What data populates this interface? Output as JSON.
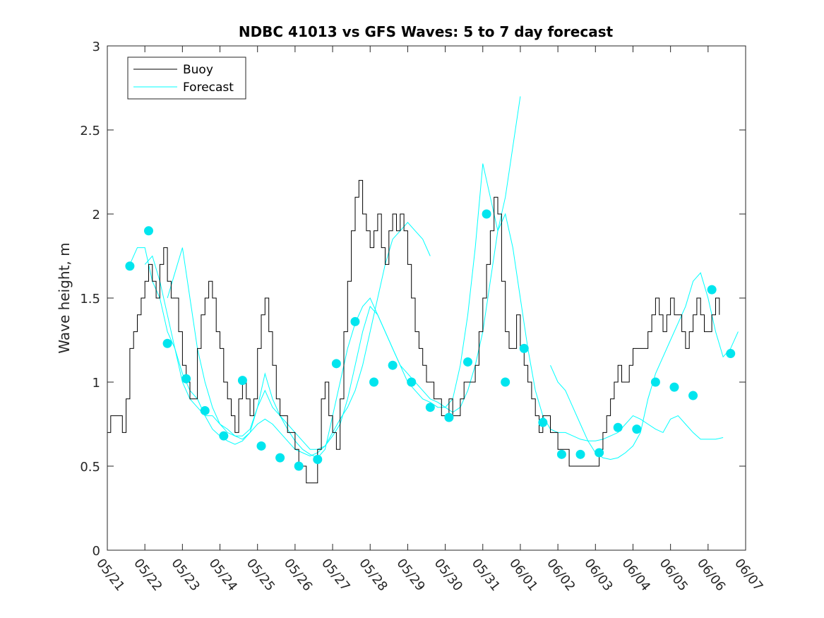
{
  "chart_data": {
    "type": "line",
    "title": "NDBC 41013 vs GFS Waves: 5 to 7 day forecast",
    "xlabel": "",
    "ylabel": "Wave height, m",
    "ylim": [
      0,
      3
    ],
    "yticks": [
      "0",
      "0.5",
      "1",
      "1.5",
      "2",
      "2.5",
      "3"
    ],
    "xlim": [
      "05/21",
      "06/07"
    ],
    "xticks": [
      "05/21",
      "05/22",
      "05/23",
      "05/24",
      "05/25",
      "05/26",
      "05/27",
      "05/28",
      "05/29",
      "05/30",
      "05/31",
      "06/01",
      "06/02",
      "06/03",
      "06/04",
      "06/05",
      "06/06",
      "06/07"
    ],
    "grid": false,
    "legend": {
      "placement": "top-left",
      "entries": [
        "Buoy",
        "Forecast"
      ]
    },
    "colors": {
      "buoy": "#000000",
      "forecast": "#00ffff",
      "markers": "#00e5ee",
      "axes": "#262626"
    },
    "series": [
      {
        "name": "Buoy",
        "x": [
          0,
          0.08,
          0.09,
          0.4,
          0.5,
          0.6,
          0.7,
          0.8,
          0.9,
          1.0,
          1.1,
          1.2,
          1.3,
          1.4,
          1.5,
          1.6,
          1.7,
          1.8,
          1.9,
          2.0,
          2.1,
          2.2,
          2.3,
          2.4,
          2.5,
          2.6,
          2.7,
          2.8,
          2.9,
          3.0,
          3.1,
          3.2,
          3.3,
          3.4,
          3.5,
          3.6,
          3.7,
          3.8,
          3.9,
          4.0,
          4.1,
          4.2,
          4.3,
          4.4,
          4.5,
          4.6,
          4.7,
          4.8,
          4.9,
          5.0,
          5.1,
          5.2,
          5.3,
          5.4,
          5.5,
          5.6,
          5.7,
          5.8,
          5.9,
          6.0,
          6.1,
          6.2,
          6.3,
          6.4,
          6.5,
          6.6,
          6.7,
          6.8,
          6.9,
          7.0,
          7.1,
          7.2,
          7.3,
          7.4,
          7.5,
          7.6,
          7.7,
          7.8,
          7.9,
          8.0,
          8.1,
          8.2,
          8.3,
          8.4,
          8.5,
          8.6,
          8.7,
          8.8,
          8.9,
          9.0,
          9.1,
          9.2,
          9.3,
          9.4,
          9.5,
          9.6,
          9.7,
          9.8,
          9.9,
          10.0,
          10.1,
          10.2,
          10.3,
          10.4,
          10.5,
          10.6,
          10.7,
          10.8,
          10.9,
          11.0,
          11.1,
          11.2,
          11.3,
          11.4,
          11.5,
          11.6,
          11.7,
          11.8,
          11.9,
          12.0,
          12.1,
          12.2,
          12.3,
          12.4,
          12.5,
          12.6,
          12.7,
          12.8,
          12.9,
          13.0,
          13.1,
          13.2,
          13.3,
          13.4,
          13.5,
          13.6,
          13.7,
          13.8,
          13.9,
          14.0,
          14.1,
          14.2,
          14.3,
          14.4,
          14.5,
          14.6,
          14.7,
          14.8,
          14.9,
          15.0,
          15.1,
          15.2,
          15.3,
          15.4,
          15.5,
          15.6,
          15.7,
          15.8,
          15.9,
          16.0,
          16.1,
          16.2,
          16.3
        ],
        "values": [
          0.7,
          0.7,
          0.8,
          0.7,
          0.9,
          1.2,
          1.3,
          1.4,
          1.5,
          1.6,
          1.7,
          1.6,
          1.5,
          1.7,
          1.8,
          1.6,
          1.5,
          1.5,
          1.3,
          1.1,
          1.0,
          0.9,
          0.9,
          1.2,
          1.4,
          1.5,
          1.6,
          1.5,
          1.3,
          1.2,
          1.0,
          0.9,
          0.8,
          0.7,
          0.9,
          1.0,
          0.9,
          0.8,
          0.9,
          1.2,
          1.4,
          1.5,
          1.3,
          1.1,
          0.9,
          0.8,
          0.8,
          0.7,
          0.7,
          0.6,
          0.5,
          0.5,
          0.4,
          0.4,
          0.4,
          0.6,
          0.9,
          1.0,
          0.8,
          0.7,
          0.6,
          0.9,
          1.3,
          1.6,
          1.9,
          2.1,
          2.2,
          2.0,
          1.9,
          1.8,
          1.9,
          2.0,
          1.8,
          1.7,
          1.9,
          2.0,
          1.9,
          2.0,
          1.9,
          1.7,
          1.5,
          1.3,
          1.2,
          1.1,
          1.0,
          1.0,
          0.9,
          0.9,
          0.8,
          0.8,
          0.9,
          0.8,
          0.8,
          0.9,
          1.0,
          1.0,
          1.0,
          1.1,
          1.3,
          1.5,
          1.7,
          1.9,
          2.1,
          2.0,
          1.6,
          1.3,
          1.2,
          1.2,
          1.4,
          1.2,
          1.1,
          1.0,
          0.9,
          0.8,
          0.7,
          0.8,
          0.8,
          0.7,
          0.7,
          0.6,
          0.6,
          0.6,
          0.5,
          0.5,
          0.5,
          0.5,
          0.5,
          0.5,
          0.5,
          0.5,
          0.6,
          0.7,
          0.8,
          0.9,
          1.0,
          1.1,
          1.0,
          1.0,
          1.1,
          1.2,
          1.2,
          1.2,
          1.2,
          1.3,
          1.4,
          1.5,
          1.4,
          1.3,
          1.4,
          1.5,
          1.4,
          1.4,
          1.3,
          1.2,
          1.3,
          1.4,
          1.5,
          1.4,
          1.3,
          1.3,
          1.4,
          1.5,
          1.4
        ]
      },
      {
        "name": "Forecast",
        "x": [
          0.6,
          0.8,
          1.0,
          1.2,
          1.4,
          1.6,
          1.8,
          2.0,
          2.2,
          2.4,
          2.6,
          2.8,
          3.0,
          3.2,
          3.4,
          3.6,
          3.8,
          4.0,
          4.2,
          4.4,
          4.6,
          4.8,
          5.0,
          5.2,
          5.4,
          5.6,
          5.8,
          6.0,
          6.2,
          6.4,
          6.6,
          6.8,
          7.0,
          7.2,
          7.4,
          7.6,
          7.8,
          8.0,
          8.2,
          8.4,
          8.6,
          8.8,
          9.0,
          9.2,
          9.4,
          9.6,
          9.8,
          10.0,
          10.2,
          10.4,
          10.6,
          10.8,
          11.0
        ],
        "values": [
          1.7,
          1.8,
          1.8,
          1.6,
          1.5,
          1.3,
          1.2,
          1.0,
          0.9,
          0.85,
          0.8,
          0.8,
          0.75,
          0.7,
          0.68,
          0.68,
          0.72,
          0.85,
          0.95,
          0.85,
          0.8,
          0.72,
          0.65,
          0.6,
          0.57,
          0.55,
          0.6,
          0.8,
          1.0,
          1.2,
          1.35,
          1.45,
          1.5,
          1.4,
          1.3,
          1.2,
          1.1,
          1.0,
          0.95,
          0.9,
          0.88,
          0.85,
          0.85,
          0.9,
          1.1,
          1.4,
          1.8,
          2.3,
          2.1,
          1.9,
          2.1,
          2.4,
          2.7
        ]
      },
      {
        "name": "",
        "x": [
          1.0,
          1.2,
          1.4,
          1.6,
          1.8,
          2.0,
          2.2,
          2.4,
          2.6,
          2.8,
          3.0,
          3.2,
          3.4,
          3.6,
          3.8,
          4.0,
          4.2,
          4.4,
          4.6,
          4.8,
          5.0,
          5.2,
          5.4,
          5.6,
          5.8,
          6.0,
          6.2,
          6.4,
          6.6,
          6.8,
          7.0,
          7.2,
          7.4,
          7.6,
          7.8,
          8.0,
          8.2,
          8.4,
          8.6
        ],
        "values": [
          1.7,
          1.75,
          1.6,
          1.4,
          1.2,
          1.05,
          0.95,
          0.9,
          0.8,
          0.72,
          0.68,
          0.65,
          0.63,
          0.65,
          0.7,
          0.75,
          0.78,
          0.75,
          0.7,
          0.65,
          0.6,
          0.58,
          0.56,
          0.58,
          0.62,
          0.7,
          0.78,
          0.85,
          0.95,
          1.1,
          1.3,
          1.5,
          1.7,
          1.85,
          1.9,
          1.95,
          1.9,
          1.85,
          1.75
        ]
      },
      {
        "name": "",
        "x": [
          1.6,
          1.8,
          2.0,
          2.2,
          2.4,
          2.6,
          2.8,
          3.0,
          3.2,
          3.4,
          3.6,
          3.8,
          4.0,
          4.2,
          4.4,
          4.6,
          4.8,
          5.0,
          5.2,
          5.4,
          5.6,
          5.8,
          6.0,
          6.2,
          6.4,
          6.6,
          6.8,
          7.0,
          7.2,
          7.4,
          7.6,
          7.8,
          8.0,
          8.2,
          8.4,
          8.6,
          8.8,
          9.0,
          9.2,
          9.4,
          9.6,
          9.8,
          10.0,
          10.2,
          10.4,
          10.6,
          10.8,
          11.0,
          11.2,
          11.4,
          11.6,
          11.8,
          12.0,
          12.2,
          12.4,
          12.6,
          12.8,
          13.0,
          13.2,
          13.4,
          13.6,
          13.8,
          14.0,
          14.2,
          14.4,
          14.6,
          14.8,
          15.0,
          15.2,
          15.4,
          15.6,
          15.8,
          16.0,
          16.2,
          16.4
        ],
        "values": [
          1.5,
          1.65,
          1.8,
          1.5,
          1.2,
          1.0,
          0.85,
          0.75,
          0.72,
          0.68,
          0.66,
          0.7,
          0.85,
          1.05,
          0.9,
          0.8,
          0.75,
          0.7,
          0.65,
          0.6,
          0.6,
          0.62,
          0.68,
          0.75,
          0.9,
          1.1,
          1.3,
          1.45,
          1.4,
          1.3,
          1.2,
          1.1,
          1.05,
          1.0,
          0.95,
          0.9,
          0.88,
          0.85,
          0.82,
          0.85,
          0.95,
          1.1,
          1.3,
          1.6,
          1.9,
          2.0,
          1.8,
          1.5,
          1.2,
          0.95,
          0.8,
          0.72,
          0.7,
          0.7,
          0.68,
          0.66,
          0.65,
          0.65,
          0.66,
          0.68,
          0.7,
          0.75,
          0.8,
          0.78,
          0.75,
          0.72,
          0.7,
          0.78,
          0.8,
          0.75,
          0.7,
          0.66,
          0.66,
          0.66,
          0.67
        ]
      },
      {
        "name": "",
        "x": [
          11.8,
          12.0,
          12.2,
          12.4,
          12.6,
          12.8,
          13.0,
          13.2,
          13.4,
          13.6,
          13.8,
          14.0,
          14.2,
          14.4,
          14.6,
          14.8,
          15.0,
          15.2,
          15.4,
          15.6,
          15.8,
          16.0,
          16.2,
          16.4,
          16.6,
          16.8
        ],
        "values": [
          1.1,
          1.0,
          0.95,
          0.85,
          0.75,
          0.65,
          0.58,
          0.55,
          0.54,
          0.55,
          0.58,
          0.62,
          0.7,
          0.9,
          1.05,
          1.15,
          1.25,
          1.35,
          1.45,
          1.6,
          1.65,
          1.5,
          1.3,
          1.15,
          1.2,
          1.3
        ]
      }
    ],
    "forecast_points": {
      "x": [
        0.6,
        1.1,
        1.6,
        2.1,
        2.6,
        3.1,
        3.6,
        4.1,
        4.6,
        5.1,
        5.6,
        6.1,
        6.6,
        7.1,
        7.6,
        8.1,
        8.6,
        9.1,
        9.6,
        10.1,
        10.6,
        11.1,
        11.6,
        12.1,
        12.6,
        13.1,
        13.6,
        14.1,
        14.6,
        15.1,
        15.6,
        16.1,
        16.6
      ],
      "values": [
        1.69,
        1.9,
        1.23,
        1.02,
        0.83,
        0.68,
        1.01,
        0.62,
        0.55,
        0.5,
        0.54,
        1.11,
        1.36,
        1.0,
        1.1,
        1.0,
        0.85,
        0.79,
        1.12,
        2.0,
        1.0,
        1.2,
        0.76,
        0.57,
        0.57,
        0.58,
        0.73,
        0.72,
        1.0,
        0.97,
        0.92,
        1.55,
        1.17
      ]
    }
  }
}
